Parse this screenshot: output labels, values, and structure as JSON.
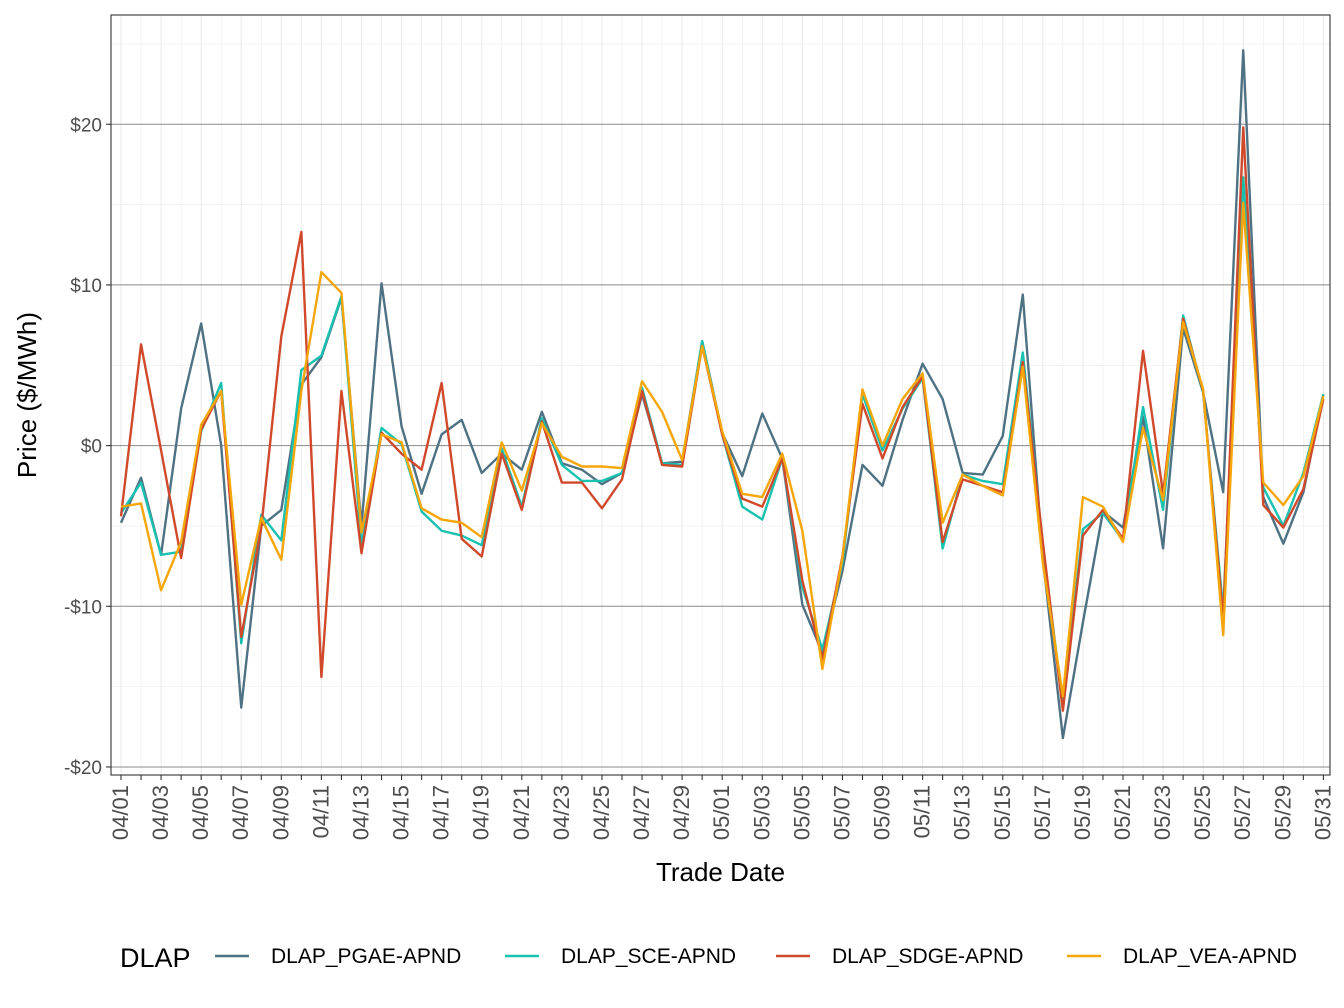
{
  "chart_data": {
    "type": "line",
    "xlabel": "Trade Date",
    "ylabel": "Price ($/MWh)",
    "ylim": [
      -20.5,
      26.8
    ],
    "y_ticks": [
      -20,
      -10,
      0,
      10,
      20
    ],
    "y_tick_labels": [
      "-$20",
      "-$10",
      "$0",
      "$10",
      "$20"
    ],
    "grid": true,
    "legend": {
      "title": "DLAP",
      "position": "bottom"
    },
    "x": [
      "04/01",
      "04/02",
      "04/03",
      "04/04",
      "04/05",
      "04/06",
      "04/07",
      "04/08",
      "04/09",
      "04/10",
      "04/11",
      "04/12",
      "04/13",
      "04/14",
      "04/15",
      "04/16",
      "04/17",
      "04/18",
      "04/19",
      "04/20",
      "04/21",
      "04/22",
      "04/23",
      "04/24",
      "04/25",
      "04/26",
      "04/27",
      "04/28",
      "04/29",
      "04/30",
      "05/01",
      "05/02",
      "05/03",
      "05/04",
      "05/05",
      "05/06",
      "05/07",
      "05/08",
      "05/09",
      "05/10",
      "05/11",
      "05/12",
      "05/13",
      "05/14",
      "05/15",
      "05/16",
      "05/17",
      "05/18",
      "05/19",
      "05/20",
      "05/21",
      "05/22",
      "05/23",
      "05/24",
      "05/25",
      "05/26",
      "05/27",
      "05/28",
      "05/29",
      "05/30",
      "05/31"
    ],
    "x_tick_labels": [
      "04/01",
      "04/03",
      "04/05",
      "04/07",
      "04/09",
      "04/11",
      "04/13",
      "04/15",
      "04/17",
      "04/19",
      "04/21",
      "04/23",
      "04/25",
      "04/27",
      "04/29",
      "05/01",
      "05/03",
      "05/05",
      "05/07",
      "05/09",
      "05/11",
      "05/13",
      "05/15",
      "05/17",
      "05/19",
      "05/21",
      "05/23",
      "05/25",
      "05/27",
      "05/29",
      "05/31"
    ],
    "series": [
      {
        "name": "DLAP_PGAE-APND",
        "color": "#4e7283",
        "values": [
          -4.8,
          -2,
          -6.8,
          2.3,
          7.6,
          0,
          -16.3,
          -5,
          -4,
          3.8,
          5.5,
          9.2,
          -5,
          10.1,
          1.2,
          -3,
          0.7,
          1.6,
          -1.7,
          -0.5,
          -1.5,
          2.1,
          -1.1,
          -1.5,
          -2.4,
          -1.7,
          3.2,
          -1.1,
          -1,
          6.5,
          0.8,
          -1.9,
          2,
          -0.8,
          -9.9,
          -12.9,
          -7.8,
          -1.2,
          -2.5,
          1.6,
          5.1,
          2.9,
          -1.7,
          -1.8,
          0.6,
          9.4,
          -7,
          -18.2,
          -11,
          -4.1,
          -5.1,
          1.8,
          -6.4,
          7.3,
          3.3,
          -2.9,
          24.6,
          -3.2,
          -6.1,
          -2.9,
          3.2
        ]
      },
      {
        "name": "DLAP_SCE-APND",
        "color": "#18c1b0",
        "values": [
          -4.2,
          -2.3,
          -6.8,
          -6.6,
          0.9,
          3.9,
          -12.3,
          -4.3,
          -5.9,
          4.7,
          5.6,
          9.3,
          -6.2,
          1.1,
          0.1,
          -4.1,
          -5.3,
          -5.6,
          -6.2,
          -0.2,
          -3.8,
          1.7,
          -1.2,
          -2.2,
          -2.2,
          -1.7,
          3.6,
          -1.1,
          -1.2,
          6.5,
          0.7,
          -3.8,
          -4.6,
          -0.8,
          -8.8,
          -12.7,
          -7.3,
          3.2,
          -0.3,
          2.3,
          4.2,
          -6.4,
          -1.8,
          -2.2,
          -2.4,
          5.8,
          -6.3,
          -16.1,
          -5.2,
          -4.2,
          -5.9,
          2.4,
          -4,
          8.1,
          3.3,
          -10.3,
          16.7,
          -2.6,
          -5,
          -1.7,
          3.2
        ]
      },
      {
        "name": "DLAP_SDGE-APND",
        "color": "#d1492b",
        "values": [
          -4.4,
          6.3,
          -0.3,
          -7,
          1,
          3.4,
          -11.9,
          -5.1,
          6.8,
          13.3,
          -14.4,
          3.4,
          -6.7,
          0.8,
          -0.5,
          -1.5,
          3.9,
          -5.8,
          -6.9,
          -0.5,
          -4,
          1.5,
          -2.3,
          -2.3,
          -3.9,
          -2.1,
          3.4,
          -1.2,
          -1.3,
          6.2,
          0.7,
          -3.3,
          -3.8,
          -0.8,
          -8.4,
          -13.3,
          -6.9,
          2.6,
          -0.8,
          2.4,
          4.3,
          -6,
          -2.1,
          -2.5,
          -2.9,
          5.2,
          -6,
          -16.5,
          -5.6,
          -4,
          -5.8,
          5.9,
          -3,
          7.9,
          3.4,
          -10.8,
          19.8,
          -3.7,
          -5.1,
          -2.7,
          2.9
        ]
      },
      {
        "name": "DLAP_VEA-APND",
        "color": "#f5a60a",
        "values": [
          -3.8,
          -3.6,
          -9,
          -6,
          1.3,
          3.4,
          -9.9,
          -4.5,
          -7.1,
          3.4,
          10.8,
          9.5,
          -5.4,
          0.7,
          0.2,
          -3.9,
          -4.6,
          -4.8,
          -5.7,
          0.2,
          -2.8,
          1.4,
          -0.7,
          -1.3,
          -1.3,
          -1.4,
          4,
          2.1,
          -0.9,
          6.2,
          0.9,
          -3,
          -3.2,
          -0.5,
          -5.3,
          -13.9,
          -7,
          3.5,
          0,
          2.9,
          4.5,
          -4.8,
          -1.8,
          -2.5,
          -3.1,
          4.9,
          -7.3,
          -15.6,
          -3.2,
          -3.8,
          -6,
          1.1,
          -3.4,
          7.7,
          3.5,
          -11.8,
          15.1,
          -2.3,
          -3.7,
          -1.9,
          3.1
        ]
      }
    ]
  }
}
